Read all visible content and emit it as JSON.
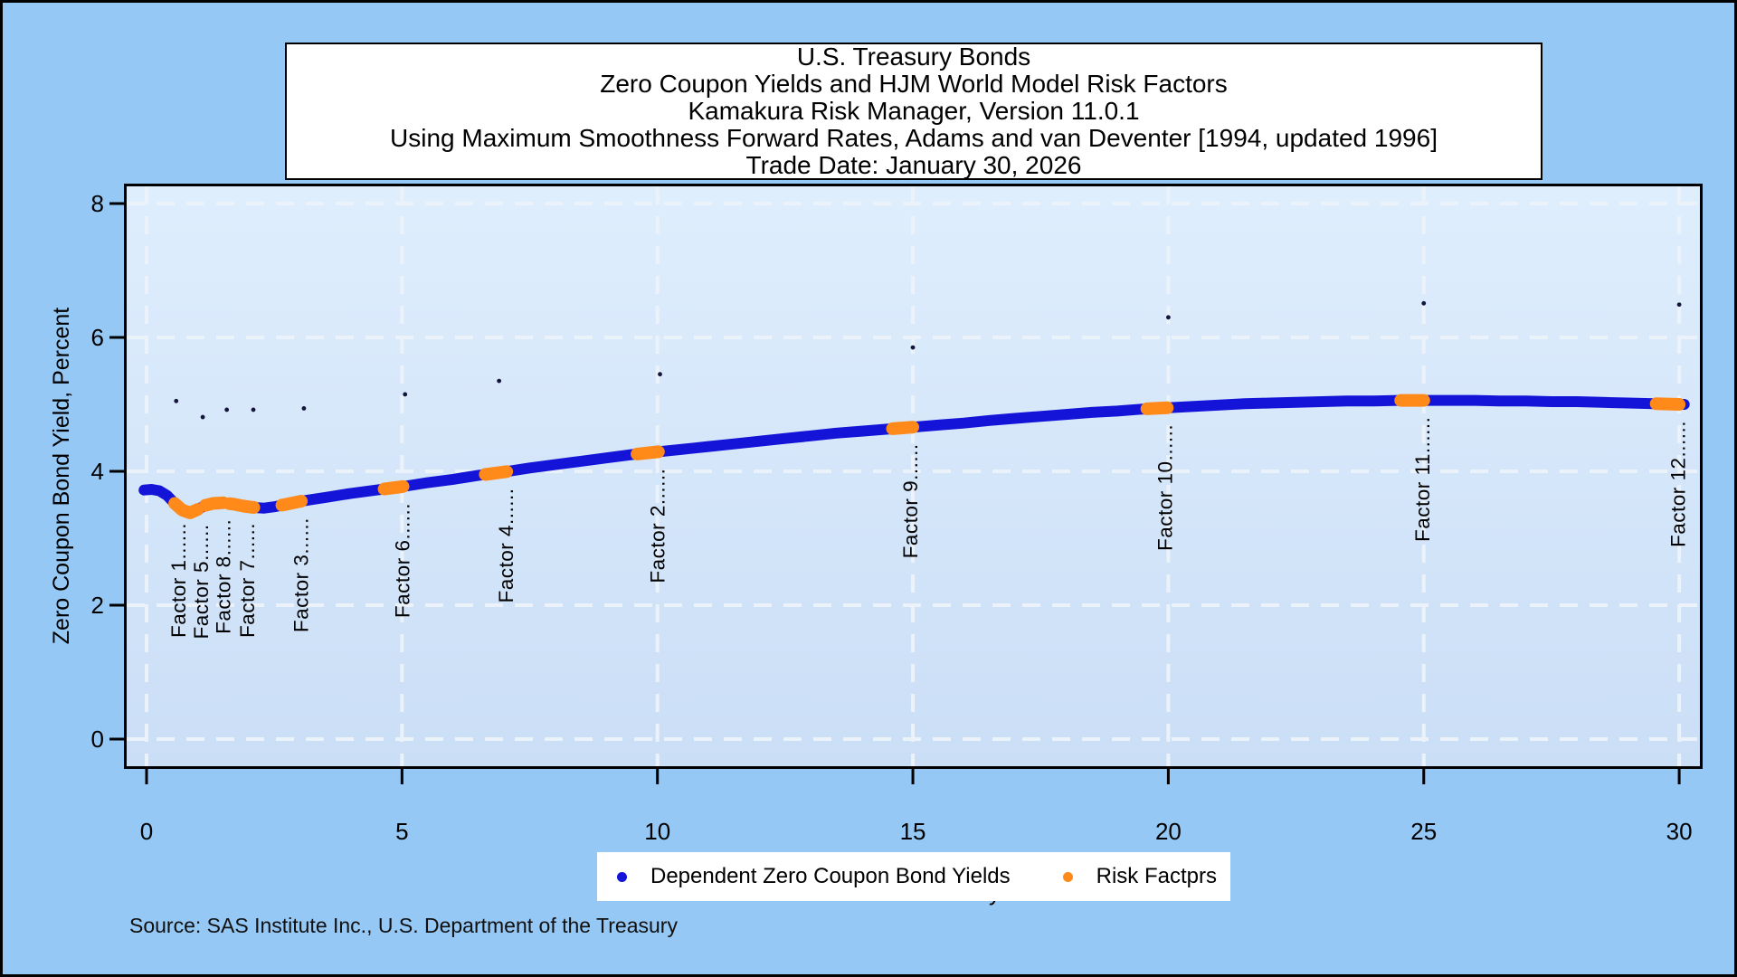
{
  "title_box": {
    "lines": [
      "U.S. Treasury Bonds",
      "Zero Coupon Yields and HJM World Model Risk Factors",
      "Kamakura Risk Manager, Version 11.0.1",
      "Using Maximum Smoothness Forward Rates, Adams and van Deventer [1994, updated 1996]",
      "Trade Date: January 30, 2026"
    ]
  },
  "source_note": "Source: SAS Institute Inc., U.S. Department of the Treasury",
  "legend": {
    "items": [
      {
        "label": "Dependent Zero Coupon Bond Yields",
        "marker_color": "#1414d8"
      },
      {
        "label": "Risk Factprs",
        "marker_color": "#ff8a1a"
      }
    ]
  },
  "colors": {
    "outer_background": "#95c8f5",
    "plot_gradient_top": "#dfeefd",
    "plot_gradient_bottom": "#cadef6",
    "gridline": "#ecf2fa",
    "curve_blue": "#1414d8",
    "risk_factor_orange": "#ff8a1a",
    "axis_black": "#000000",
    "stray_dot": "#14143c",
    "legend_background": "#ffffff",
    "title_background": "#ffffff"
  },
  "chart_data": {
    "type": "line",
    "title": "U.S. Treasury Bonds — Zero Coupon Yields and HJM World Model Risk Factors",
    "xlabel": "Years to Maturity",
    "ylabel": "Zero Coupon Bond Yield, Percent",
    "xlim": [
      -0.45,
      30.45
    ],
    "ylim": [
      -0.45,
      8.3
    ],
    "xticks": [
      0,
      5,
      10,
      15,
      20,
      25,
      30
    ],
    "yticks": [
      0,
      2,
      4,
      6,
      8
    ],
    "grid": true,
    "grid_style": "dashed-white",
    "legend_position": "bottom",
    "series": [
      {
        "name": "Dependent Zero Coupon Bond Yields",
        "style": "thick-dot-line",
        "color": "#1414d8",
        "points": [
          [
            -0.05,
            3.72
          ],
          [
            0.1,
            3.73
          ],
          [
            0.25,
            3.71
          ],
          [
            0.4,
            3.64
          ],
          [
            0.55,
            3.52
          ],
          [
            0.7,
            3.42
          ],
          [
            0.85,
            3.38
          ],
          [
            1.0,
            3.43
          ],
          [
            1.15,
            3.49
          ],
          [
            1.3,
            3.52
          ],
          [
            1.5,
            3.53
          ],
          [
            1.7,
            3.51
          ],
          [
            1.9,
            3.48
          ],
          [
            2.1,
            3.46
          ],
          [
            2.3,
            3.45
          ],
          [
            2.5,
            3.47
          ],
          [
            2.75,
            3.51
          ],
          [
            3.0,
            3.55
          ],
          [
            3.25,
            3.58
          ],
          [
            3.5,
            3.61
          ],
          [
            4.0,
            3.67
          ],
          [
            4.5,
            3.72
          ],
          [
            5.0,
            3.77
          ],
          [
            5.5,
            3.83
          ],
          [
            6.0,
            3.88
          ],
          [
            6.5,
            3.94
          ],
          [
            7.0,
            3.99
          ],
          [
            7.5,
            4.05
          ],
          [
            8.0,
            4.1
          ],
          [
            8.5,
            4.15
          ],
          [
            9.0,
            4.2
          ],
          [
            9.5,
            4.25
          ],
          [
            10.0,
            4.29
          ],
          [
            10.5,
            4.33
          ],
          [
            11.0,
            4.37
          ],
          [
            11.5,
            4.41
          ],
          [
            12.0,
            4.45
          ],
          [
            12.5,
            4.49
          ],
          [
            13.0,
            4.53
          ],
          [
            13.5,
            4.57
          ],
          [
            14.0,
            4.6
          ],
          [
            14.5,
            4.63
          ],
          [
            15.0,
            4.66
          ],
          [
            15.5,
            4.69
          ],
          [
            16.0,
            4.72
          ],
          [
            16.5,
            4.76
          ],
          [
            17.0,
            4.79
          ],
          [
            17.5,
            4.82
          ],
          [
            18.0,
            4.85
          ],
          [
            18.5,
            4.88
          ],
          [
            19.0,
            4.9
          ],
          [
            19.5,
            4.93
          ],
          [
            20.0,
            4.95
          ],
          [
            20.5,
            4.97
          ],
          [
            21.0,
            4.99
          ],
          [
            21.5,
            5.01
          ],
          [
            22.0,
            5.02
          ],
          [
            22.5,
            5.03
          ],
          [
            23.0,
            5.04
          ],
          [
            23.5,
            5.05
          ],
          [
            24.0,
            5.05
          ],
          [
            24.5,
            5.06
          ],
          [
            25.0,
            5.06
          ],
          [
            25.5,
            5.06
          ],
          [
            26.0,
            5.06
          ],
          [
            26.5,
            5.05
          ],
          [
            27.0,
            5.05
          ],
          [
            27.5,
            5.04
          ],
          [
            28.0,
            5.04
          ],
          [
            28.5,
            5.03
          ],
          [
            29.0,
            5.02
          ],
          [
            29.5,
            5.01
          ],
          [
            30.0,
            5.0
          ],
          [
            30.1,
            5.0
          ]
        ]
      },
      {
        "name": "Risk Factprs",
        "style": "thick-dot-segments-on-curve",
        "color": "#ff8a1a",
        "segments": [
          [
            0.55,
            1.0
          ],
          [
            1.15,
            1.5
          ],
          [
            1.62,
            1.83
          ],
          [
            1.87,
            2.1
          ],
          [
            2.65,
            3.03
          ],
          [
            4.65,
            5.02
          ],
          [
            6.63,
            7.05
          ],
          [
            9.6,
            10.02
          ],
          [
            14.6,
            15.0
          ],
          [
            19.58,
            19.98
          ],
          [
            24.55,
            25.0
          ],
          [
            29.55,
            30.0
          ]
        ]
      }
    ],
    "risk_factor_labels": [
      {
        "label": "Factor 1",
        "x": 0.62
      },
      {
        "label": "Factor 5",
        "x": 1.06
      },
      {
        "label": "Factor 8",
        "x": 1.5
      },
      {
        "label": "Factor 7",
        "x": 1.97
      },
      {
        "label": "Factor 3",
        "x": 3.02
      },
      {
        "label": "Factor 6",
        "x": 5.0
      },
      {
        "label": "Factor 4",
        "x": 7.03
      },
      {
        "label": "Factor 2",
        "x": 10.0
      },
      {
        "label": "Factor 9",
        "x": 14.95
      },
      {
        "label": "Factor 10",
        "x": 19.93
      },
      {
        "label": "Factor 11",
        "x": 24.97
      },
      {
        "label": "Factor 12",
        "x": 29.97
      }
    ],
    "risk_factor_leader": "......",
    "stray_dots": [
      [
        0.58,
        5.05
      ],
      [
        1.1,
        4.81
      ],
      [
        1.57,
        4.92
      ],
      [
        2.09,
        4.92
      ],
      [
        3.08,
        4.94
      ],
      [
        5.06,
        5.15
      ],
      [
        6.9,
        5.35
      ],
      [
        10.05,
        5.45
      ],
      [
        15.0,
        5.85
      ],
      [
        20.0,
        6.3
      ],
      [
        25.0,
        6.51
      ],
      [
        30.0,
        6.49
      ]
    ]
  }
}
